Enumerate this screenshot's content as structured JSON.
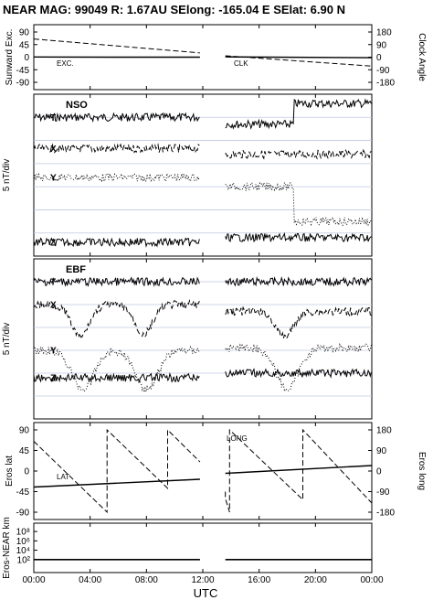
{
  "title": "NEAR MAG: 99049  R: 1.67AU  SElong: -165.04 E  SElat:    6.90 N",
  "chart_data": [
    {
      "id": "angles",
      "type": "line",
      "ylabel_left": "Sunward Exc.",
      "ylabel_right": "Clock Angle",
      "yticks_left": [
        "90",
        "45",
        "0",
        "-45",
        "-90"
      ],
      "yticks_right": [
        "180",
        "90",
        "0",
        "-90",
        "-180"
      ],
      "ylim_left": [
        -90,
        90
      ],
      "ylim_right": [
        -180,
        180
      ],
      "series": [
        {
          "name": "EXC.",
          "style": "solid",
          "points": [
            [
              0,
              0.5
            ],
            [
              5.5,
              0
            ],
            [
              11.8,
              0
            ],
            [
              13.6,
              1
            ],
            [
              24,
              -2
            ]
          ]
        },
        {
          "name": "CLK",
          "style": "dashed",
          "points": [
            [
              0,
              65
            ],
            [
              11.8,
              15
            ],
            [
              13.6,
              5
            ],
            [
              24,
              -32
            ]
          ]
        }
      ]
    },
    {
      "id": "nso",
      "type": "line",
      "panel_label": "NSO",
      "ylabel": "5 nT/div",
      "traces": [
        {
          "name": "T",
          "style": "solid",
          "segments": [
            {
              "level": 1.0,
              "tail": 0.1
            },
            {
              "level": 1.3,
              "step": {
                "at": 18.5,
                "to": 0.4
              }
            }
          ]
        },
        {
          "name": "X",
          "style": "dashed",
          "segments": [
            {
              "level": 2.35
            },
            {
              "level": 2.6
            }
          ]
        },
        {
          "name": "Y",
          "style": "dotted",
          "segments": [
            {
              "level": 3.6
            },
            {
              "level": 4.0,
              "step": {
                "at": 18.5,
                "to": 5.5
              }
            }
          ]
        },
        {
          "name": "Z",
          "style": "solid",
          "segments": [
            {
              "level": 6.4
            },
            {
              "level": 6.2
            }
          ]
        }
      ]
    },
    {
      "id": "ebf",
      "type": "line",
      "panel_label": "EBF",
      "ylabel": "5 nT/div",
      "traces": [
        {
          "name": "T",
          "style": "solid",
          "segments": [
            {
              "level": 1.0
            },
            {
              "level": 1.0
            }
          ]
        },
        {
          "name": "X",
          "style": "dashed",
          "segments": [
            {
              "level": 2.0,
              "dips": [
                [
                  3.3,
                  1.4
                ],
                [
                  7.8,
                  1.3
                ]
              ]
            },
            {
              "level": 2.3,
              "dips": [
                [
                  17.8,
                  1.1
                ]
              ]
            }
          ]
        },
        {
          "name": "Y",
          "style": "dotted",
          "segments": [
            {
              "level": 4.0,
              "bumps": [
                [
                  3.5,
                  1.7
                ],
                [
                  8.0,
                  1.7
                ]
              ]
            },
            {
              "level": 3.9,
              "bumps": [
                [
                  18.0,
                  1.8
                ]
              ]
            }
          ]
        },
        {
          "name": "Z",
          "style": "solid",
          "segments": [
            {
              "level": 5.2
            },
            {
              "level": 5.0
            }
          ]
        }
      ]
    },
    {
      "id": "eros",
      "type": "line",
      "ylabel_left": "Eros lat",
      "ylabel_right": "Eros long",
      "yticks_left": [
        "90",
        "45",
        "0",
        "-45",
        "-90"
      ],
      "yticks_right": [
        "180",
        "90",
        "0",
        "-90",
        "-180"
      ],
      "ylim_left": [
        -90,
        90
      ],
      "ylim_right": [
        -180,
        180
      ],
      "series": [
        {
          "name": "LAT",
          "style": "solid",
          "axis": "left",
          "points": [
            [
              0,
              -35
            ],
            [
              11.8,
              -18
            ],
            [
              13.6,
              -5
            ],
            [
              24,
              12
            ]
          ]
        },
        {
          "name": "LONG",
          "style": "dashed",
          "axis": "right",
          "points": [
            [
              0,
              130
            ],
            [
              5.2,
              -180
            ],
            [
              5.2,
              180
            ],
            [
              9.5,
              -75
            ],
            [
              9.5,
              180
            ],
            [
              11.8,
              40
            ],
            [
              13.6,
              -90
            ],
            [
              13.6,
              -120
            ],
            [
              13.9,
              -180
            ],
            [
              13.9,
              180
            ],
            [
              19.1,
              -125
            ],
            [
              19.1,
              180
            ],
            [
              24,
              -140
            ]
          ]
        }
      ]
    },
    {
      "id": "distance",
      "type": "line",
      "ylabel": "Eros-NEAR km",
      "yticks": [
        "10⁸",
        "10⁶",
        "10⁴",
        "10²"
      ],
      "ylim": [
        "10⁰",
        "10⁹"
      ],
      "yscale": "log",
      "series": [
        {
          "name": "",
          "style": "solid",
          "segments": [
            {
              "x": [
                0,
                11.8
              ],
              "y": 100
            },
            {
              "x": [
                13.6,
                24
              ],
              "y": 100
            }
          ]
        }
      ]
    }
  ],
  "xaxis": {
    "ticks": [
      "00:00",
      "04:00",
      "08:00",
      "12:00",
      "16:00",
      "20:00",
      "00:00"
    ],
    "label": "UTC"
  },
  "colors": {
    "ink": "#000000",
    "grid": "#c0c8e0"
  }
}
